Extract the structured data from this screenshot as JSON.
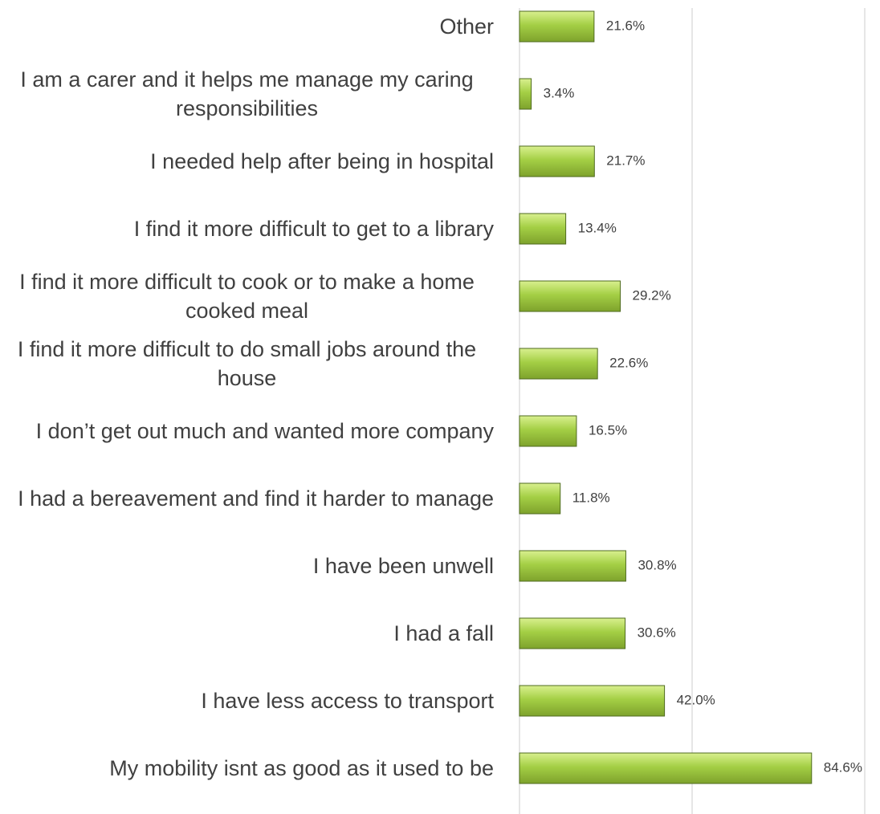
{
  "chart_data": {
    "type": "barh",
    "categories": [
      "Other",
      "I am a carer and it helps me manage my caring responsibilities",
      "I needed help after being in hospital",
      "I find it more difficult to get to a library",
      "I find it more difficult to cook or to make a home cooked meal",
      "I find it more difficult to do small jobs around the house",
      "I don’t get out much and wanted more company",
      "I had a bereavement and find it harder to manage",
      "I have been unwell",
      "I had a fall",
      "I have less access to transport",
      "My mobility isnt as good as it used to be"
    ],
    "values": [
      21.6,
      3.4,
      21.7,
      13.4,
      29.2,
      22.6,
      16.5,
      11.8,
      30.8,
      30.6,
      42.0,
      84.6
    ],
    "value_labels": [
      "21.6%",
      "3.4%",
      "21.7%",
      "13.4%",
      "29.2%",
      "22.6%",
      "16.5%",
      "11.8%",
      "30.8%",
      "30.6%",
      "42.0%",
      "84.6%"
    ],
    "color": "#9bc53d",
    "xlim": [
      0,
      100
    ],
    "xticks": [
      0,
      50,
      100
    ],
    "grid": true
  }
}
